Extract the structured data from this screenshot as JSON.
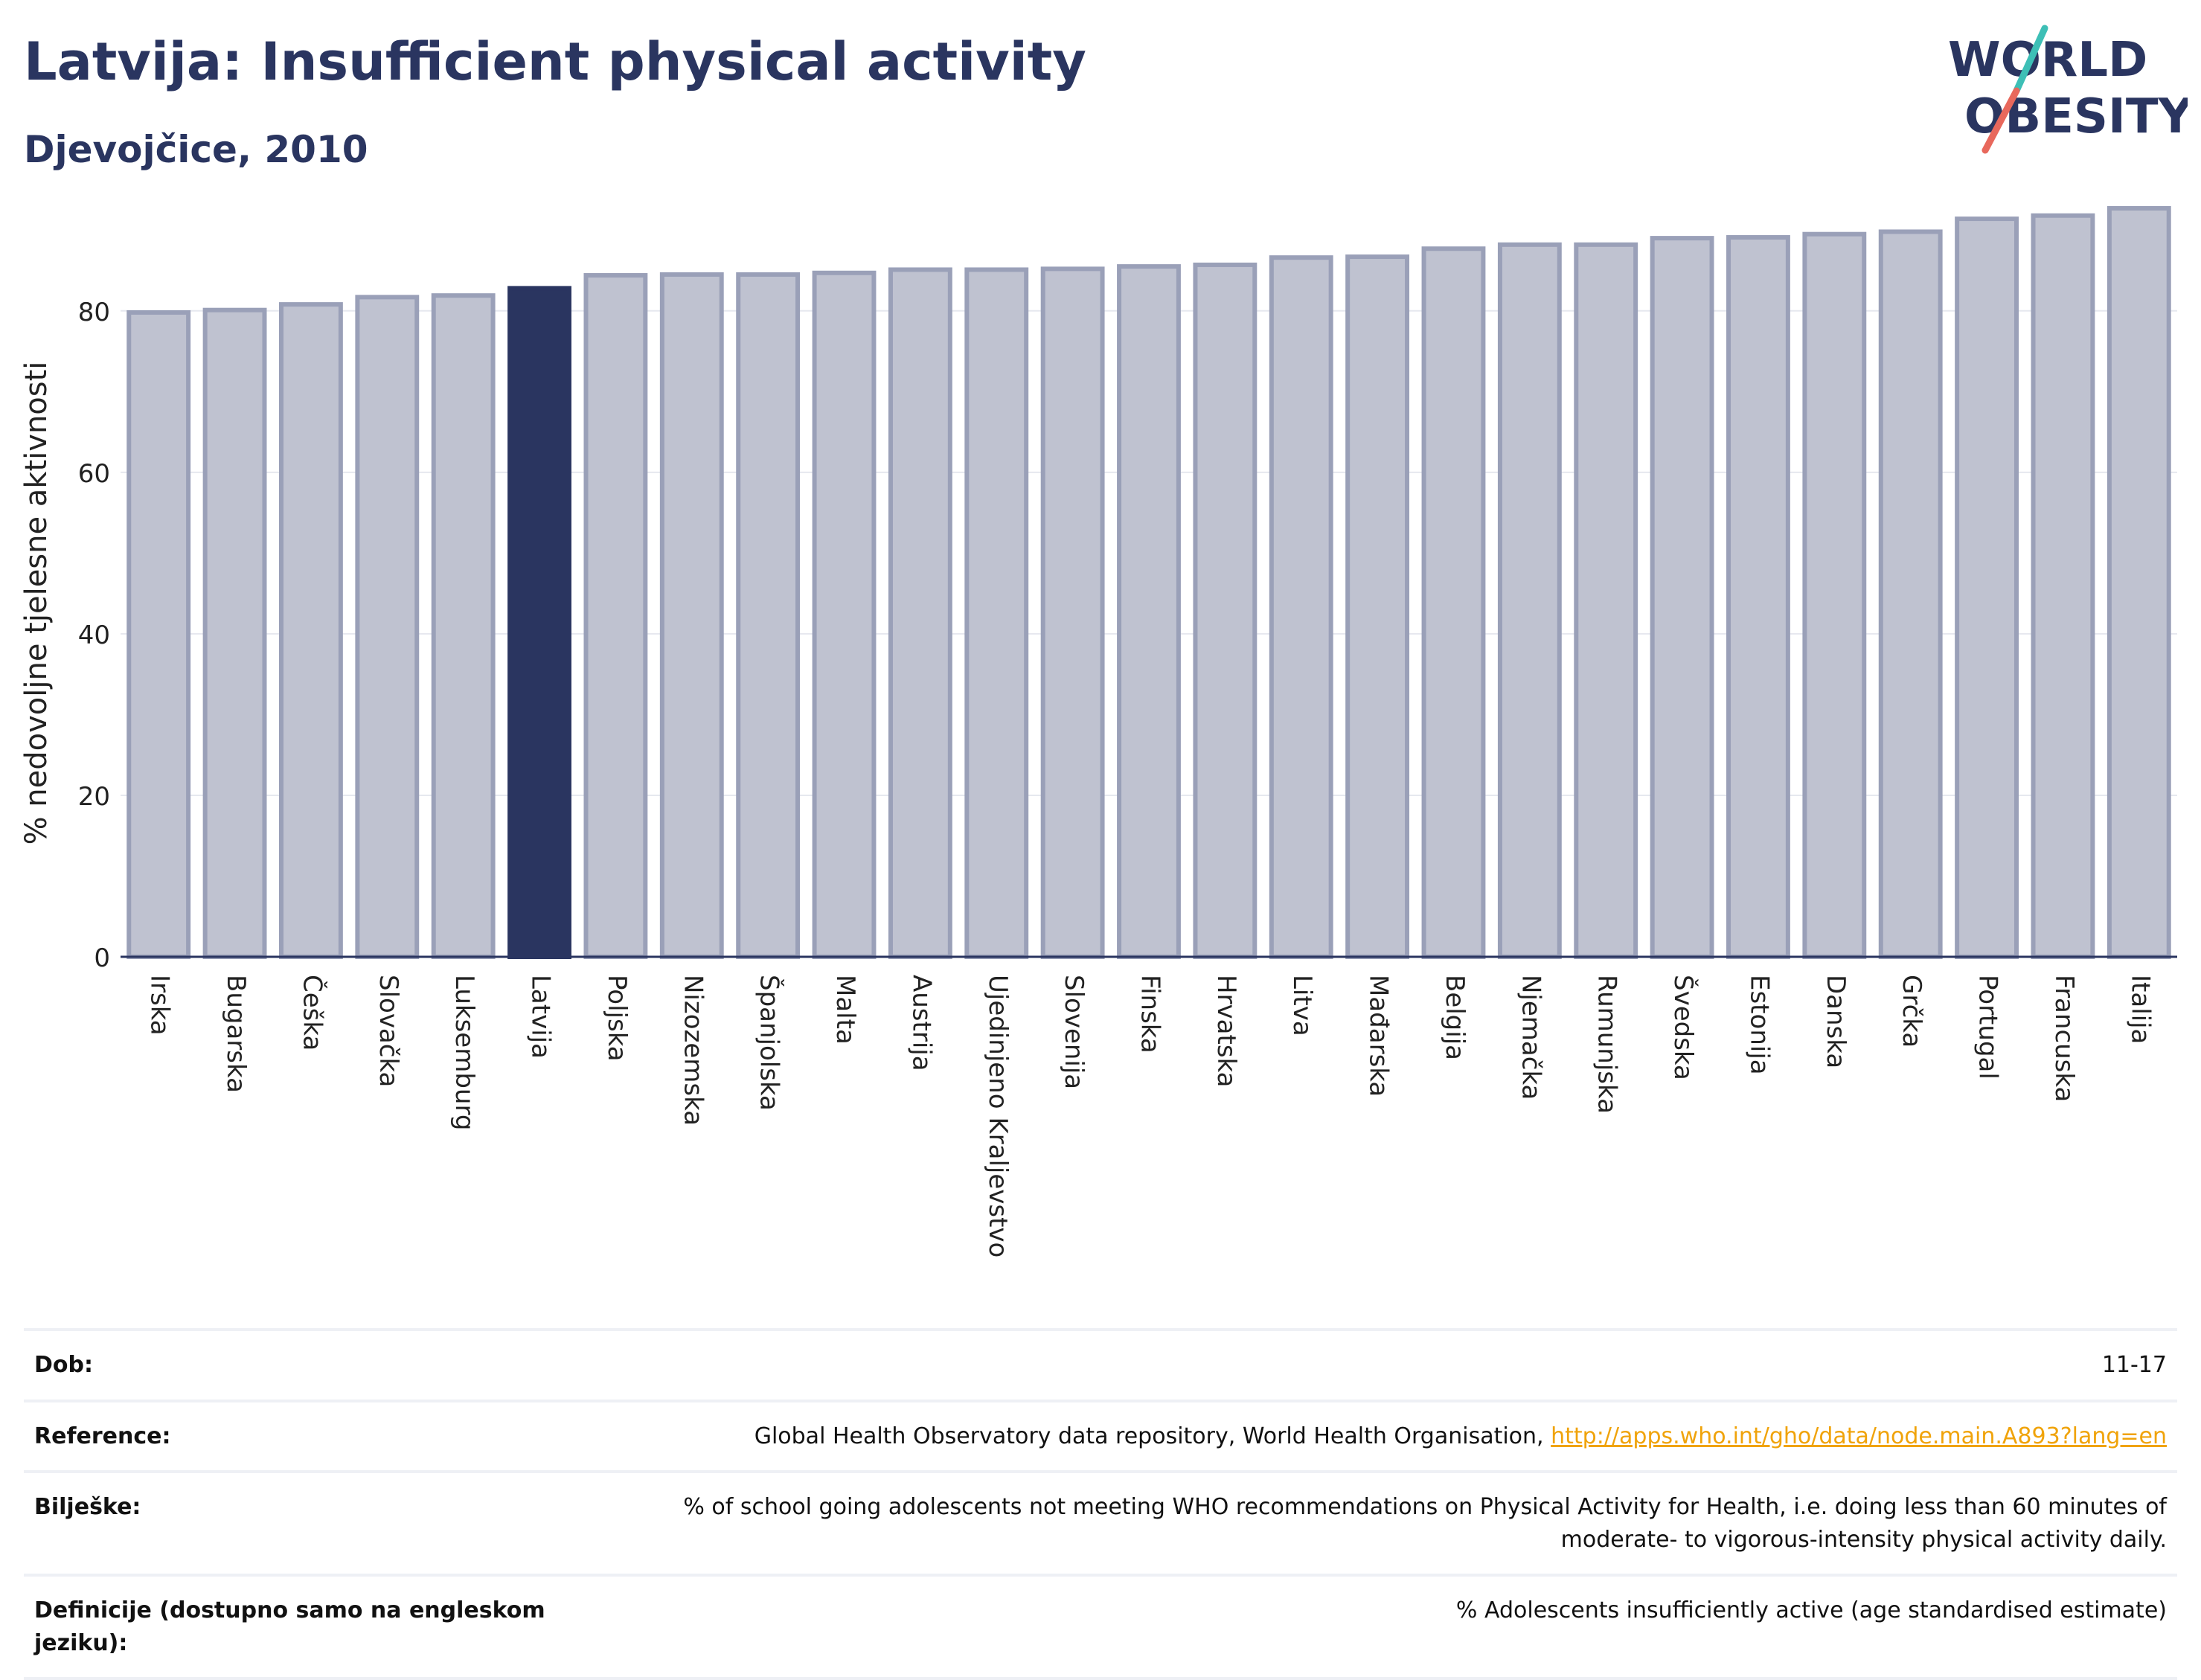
{
  "header": {
    "title": "Latvija: Insufficient physical activity",
    "subtitle": "Djevojčice, 2010"
  },
  "logo": {
    "line1": "WORLD",
    "line2": "OBESITY",
    "colors": {
      "text": "#2a3560",
      "slash_teal": "#3dbfb6",
      "slash_coral": "#e8685c"
    }
  },
  "chart_data": {
    "type": "bar",
    "ylabel": "% nedovoljne tjelesne aktivnosti",
    "xlabel": "",
    "ylim": [
      0,
      95
    ],
    "yticks": [
      0,
      20,
      40,
      60,
      80
    ],
    "grid": true,
    "highlight": "Latvija",
    "colors": {
      "bar": "#bfc2d0",
      "bar_edge": "#9aa0b8",
      "highlight": "#2a3560"
    },
    "categories": [
      "Irska",
      "Bugarska",
      "Češka",
      "Slovačka",
      "Luksemburg",
      "Latvija",
      "Poljska",
      "Nizozemska",
      "Španjolska",
      "Malta",
      "Austrija",
      "Ujedinjeno Kraljevstvo",
      "Slovenija",
      "Finska",
      "Hrvatska",
      "Litva",
      "Mađarska",
      "Belgija",
      "Njemačka",
      "Rumunjska",
      "Švedska",
      "Estonija",
      "Danska",
      "Grčka",
      "Portugal",
      "Francuska",
      "Italija"
    ],
    "values": [
      79.8,
      80.1,
      80.8,
      81.7,
      81.9,
      82.8,
      84.4,
      84.5,
      84.5,
      84.7,
      85.1,
      85.1,
      85.2,
      85.5,
      85.7,
      86.6,
      86.7,
      87.7,
      88.2,
      88.2,
      89.0,
      89.1,
      89.5,
      89.8,
      91.4,
      91.8,
      92.7
    ]
  },
  "info": {
    "rows": [
      {
        "label": "Dob:",
        "value": "11-17"
      },
      {
        "label": "Reference:",
        "value": "Global Health Observatory data repository, World Health Organisation,",
        "link": "http://apps.who.int/gho/data/node.main.A893?lang=en"
      },
      {
        "label": "Bilješke:",
        "value": "% of school going adolescents not meeting WHO recommendations on Physical Activity for Health, i.e. doing less than 60 minutes of moderate- to vigorous-intensity physical activity daily."
      },
      {
        "label": "Definicije (dostupno samo na engleskom jeziku):",
        "value": "% Adolescents insufficiently active (age standardised estimate)"
      }
    ]
  }
}
